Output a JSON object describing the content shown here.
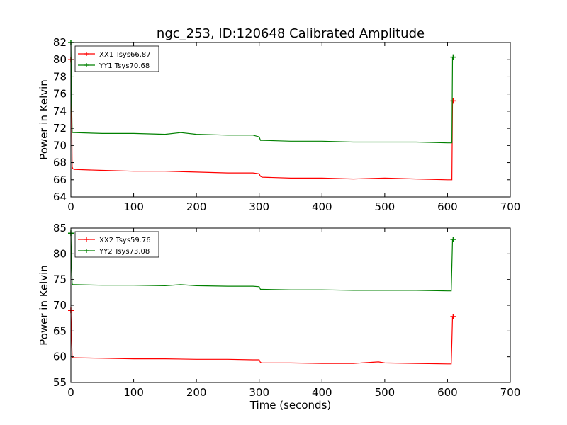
{
  "title": "ngc_253, ID:120648 Calibrated Amplitude",
  "chart_data": [
    {
      "type": "line",
      "ylabel": "Power in Kelvin",
      "xlabel": "",
      "xlim": [
        0,
        700
      ],
      "ylim": [
        64,
        82
      ],
      "x_ticks": [
        0,
        100,
        200,
        300,
        400,
        500,
        600,
        700
      ],
      "y_ticks": [
        64,
        66,
        68,
        70,
        72,
        74,
        76,
        78,
        80,
        82
      ],
      "legend_position": "top-left",
      "series": [
        {
          "name": "XX1 Tsys66.87",
          "color": "#ff0000",
          "x": [
            0,
            1,
            2,
            3,
            5,
            50,
            100,
            150,
            200,
            250,
            290,
            300,
            302,
            305,
            350,
            400,
            450,
            500,
            550,
            600,
            605,
            606,
            607,
            608,
            609
          ],
          "y": [
            80.0,
            75.5,
            67.5,
            67.3,
            67.2,
            67.1,
            67.0,
            67.0,
            66.9,
            66.8,
            66.8,
            66.7,
            66.4,
            66.3,
            66.2,
            66.2,
            66.1,
            66.2,
            66.1,
            66.0,
            66.0,
            66.0,
            66.0,
            75.2,
            75.2
          ]
        },
        {
          "name": "YY1 Tsys70.68",
          "color": "#008000",
          "x": [
            0,
            1,
            2,
            3,
            5,
            50,
            100,
            150,
            175,
            200,
            250,
            290,
            300,
            302,
            305,
            350,
            400,
            450,
            500,
            550,
            600,
            605,
            606,
            607,
            608,
            609
          ],
          "y": [
            82.0,
            76.0,
            71.6,
            71.5,
            71.5,
            71.4,
            71.4,
            71.3,
            71.5,
            71.3,
            71.2,
            71.2,
            71.0,
            70.6,
            70.6,
            70.5,
            70.5,
            70.4,
            70.4,
            70.4,
            70.3,
            70.3,
            70.3,
            70.3,
            80.3,
            80.3
          ]
        }
      ]
    },
    {
      "type": "line",
      "ylabel": "Power in Kelvin",
      "xlabel": "Time (seconds)",
      "xlim": [
        0,
        700
      ],
      "ylim": [
        55,
        85
      ],
      "x_ticks": [
        0,
        100,
        200,
        300,
        400,
        500,
        600,
        700
      ],
      "y_ticks": [
        55,
        60,
        65,
        70,
        75,
        80,
        85
      ],
      "legend_position": "top-left",
      "series": [
        {
          "name": "XX2 Tsys59.76",
          "color": "#ff0000",
          "x": [
            0,
            1,
            2,
            3,
            5,
            50,
            100,
            150,
            200,
            250,
            290,
            300,
            302,
            305,
            350,
            400,
            450,
            490,
            500,
            550,
            600,
            605,
            606,
            607,
            608,
            609
          ],
          "y": [
            69.0,
            64.0,
            60.0,
            59.8,
            59.8,
            59.7,
            59.6,
            59.6,
            59.5,
            59.5,
            59.4,
            59.4,
            58.9,
            58.8,
            58.8,
            58.7,
            58.7,
            59.0,
            58.8,
            58.7,
            58.6,
            58.6,
            58.6,
            63.0,
            67.8,
            67.8
          ]
        },
        {
          "name": "YY2 Tsys73.08",
          "color": "#008000",
          "x": [
            0,
            1,
            2,
            3,
            5,
            50,
            100,
            150,
            175,
            200,
            250,
            290,
            300,
            302,
            305,
            350,
            400,
            450,
            500,
            550,
            600,
            605,
            606,
            607,
            608,
            609
          ],
          "y": [
            84.0,
            78.0,
            74.2,
            74.0,
            74.0,
            73.9,
            73.9,
            73.8,
            74.0,
            73.8,
            73.7,
            73.7,
            73.6,
            73.1,
            73.1,
            73.0,
            73.0,
            72.9,
            72.9,
            72.9,
            72.8,
            72.8,
            72.8,
            77.7,
            82.8,
            82.8
          ]
        }
      ]
    }
  ]
}
